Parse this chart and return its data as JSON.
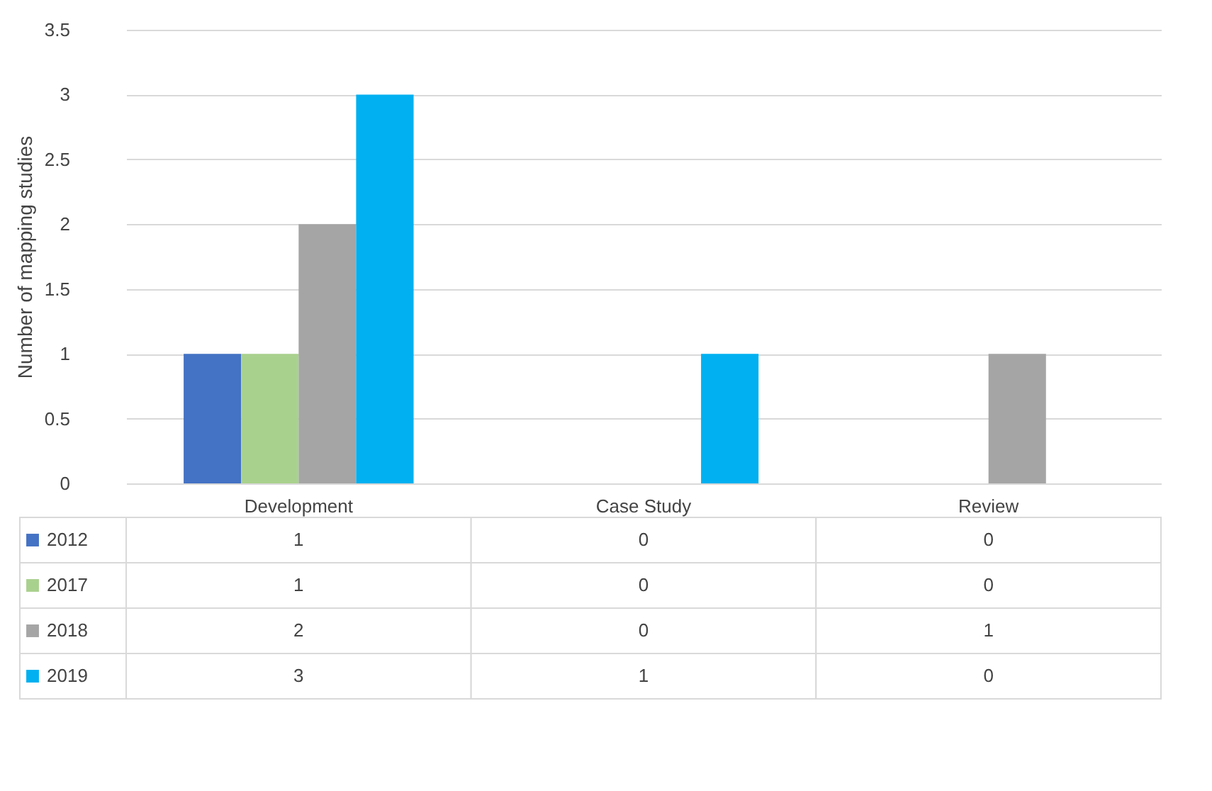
{
  "chart_data": {
    "type": "bar",
    "ylabel": "Number of mapping studies",
    "categories": [
      "Development",
      "Case Study",
      "Review"
    ],
    "series": [
      {
        "name": "2012",
        "color": "#4472c4",
        "values": [
          1,
          0,
          0
        ]
      },
      {
        "name": "2017",
        "color": "#a9d18e",
        "values": [
          1,
          0,
          0
        ]
      },
      {
        "name": "2018",
        "color": "#a5a5a5",
        "values": [
          2,
          0,
          1
        ]
      },
      {
        "name": "2019",
        "color": "#00b0f0",
        "values": [
          3,
          1,
          0
        ]
      }
    ],
    "ylim": [
      0,
      3.5
    ],
    "yticks": [
      0,
      0.5,
      1,
      1.5,
      2,
      2.5,
      3,
      3.5
    ],
    "grid": "y",
    "data_labels": true,
    "legend": "bottom"
  }
}
